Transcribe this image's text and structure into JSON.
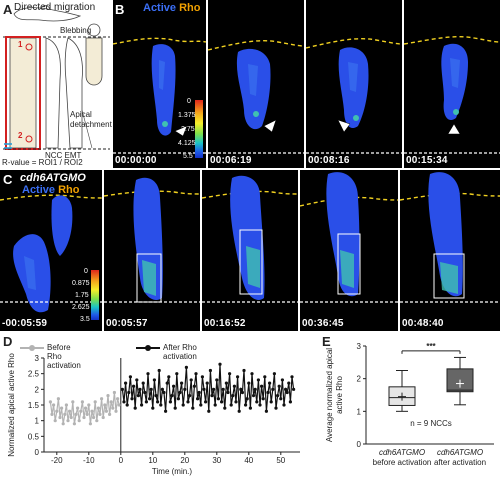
{
  "panelA": {
    "letter": "A",
    "label_directed": "Directed migration",
    "label_blebbing": "Blebbing",
    "label_apical": "Apical detachment",
    "label_ncc_emt": "NCC EMT",
    "label_r1": "1",
    "label_r2": "2",
    "label_rvalue": "R-value = ROI1 / ROI2"
  },
  "panelB": {
    "letter": "B",
    "title_active": "Active",
    "title_rho": "Rho",
    "colorbar_ticks": [
      "0",
      "1.375",
      "2.75",
      "4.125",
      "5.5"
    ],
    "timestamps": [
      "00:00:00",
      "00:06:19",
      "00:08:16",
      "00:15:34"
    ]
  },
  "panelC": {
    "letter": "C",
    "title_morph": "cdh6ATGMO",
    "title_active": "Active",
    "title_rho": "Rho",
    "colorbar_ticks": [
      "0",
      "0.875",
      "1.75",
      "2.625",
      "3.5"
    ],
    "timestamps": [
      "-00:05:59",
      "00:05:57",
      "00:16:52",
      "00:36:45",
      "00:48:40"
    ]
  },
  "panelD": {
    "letter": "D",
    "legend_before": "Before Rho activation",
    "legend_after": "After Rho activation",
    "colors": {
      "before": "#b3b3b3",
      "after": "#111111"
    }
  },
  "panelE": {
    "letter": "E",
    "n_label": "n = 9 NCCs",
    "significance": "***",
    "ylabel_line1": "Average normalized apical",
    "ylabel_line2": "active Rho",
    "cat1_line1": "cdh6ATGMO",
    "cat1_line2": "before activation",
    "cat2_line1": "cdh6ATGMO",
    "cat2_line2": "after activation"
  },
  "chart_data": [
    {
      "type": "line",
      "xlabel": "Time (min.)",
      "ylabel": "Normalized apical active Rho",
      "xlim": [
        -24,
        56
      ],
      "ylim": [
        0,
        3
      ],
      "xticks": [
        -20,
        -10,
        0,
        10,
        20,
        30,
        40,
        50
      ],
      "yticks": [
        0,
        0.5,
        1,
        1.5,
        2,
        2.5,
        3
      ],
      "series": [
        {
          "name": "Before Rho activation",
          "x": [
            -22,
            -21.5,
            -21,
            -20.5,
            -20,
            -19.5,
            -19,
            -18.5,
            -18,
            -17.5,
            -17,
            -16.5,
            -16,
            -15.5,
            -15,
            -14.5,
            -14,
            -13.5,
            -13,
            -12.5,
            -12,
            -11.5,
            -11,
            -10.5,
            -10,
            -9.5,
            -9,
            -8.5,
            -8,
            -7.5,
            -7,
            -6.5,
            -6,
            -5.5,
            -5,
            -4.5,
            -4,
            -3.5,
            -3,
            -2.5,
            -2,
            -1.5,
            -1,
            -0.5
          ],
          "y": [
            1.6,
            1.2,
            1.5,
            1.0,
            1.3,
            1.7,
            1.1,
            1.4,
            0.9,
            1.2,
            1.5,
            1.0,
            1.3,
            1.1,
            1.6,
            0.9,
            1.2,
            1.4,
            1.0,
            1.3,
            1.6,
            1.1,
            1.4,
            1.2,
            1.5,
            0.9,
            1.3,
            1.1,
            1.6,
            1.0,
            1.4,
            1.2,
            1.7,
            1.1,
            1.5,
            1.3,
            1.8,
            1.2,
            1.6,
            1.4,
            1.9,
            1.3,
            1.7,
            1.5
          ]
        },
        {
          "name": "After Rho activation",
          "x": [
            0.5,
            1,
            1.5,
            2,
            2.5,
            3,
            3.5,
            4,
            4.5,
            5,
            5.5,
            6,
            6.5,
            7,
            7.5,
            8,
            8.5,
            9,
            9.5,
            10,
            10.5,
            11,
            11.5,
            12,
            12.5,
            13,
            13.5,
            14,
            14.5,
            15,
            15.5,
            16,
            16.5,
            17,
            17.5,
            18,
            18.5,
            19,
            19.5,
            20,
            20.5,
            21,
            21.5,
            22,
            22.5,
            23,
            23.5,
            24,
            24.5,
            25,
            25.5,
            26,
            26.5,
            27,
            27.5,
            28,
            28.5,
            29,
            29.5,
            30,
            30.5,
            31,
            31.5,
            32,
            32.5,
            33,
            33.5,
            34,
            34.5,
            35,
            35.5,
            36,
            36.5,
            37,
            37.5,
            38,
            38.5,
            39,
            39.5,
            40,
            40.5,
            41,
            41.5,
            42,
            42.5,
            43,
            43.5,
            44,
            44.5,
            45,
            45.5,
            46,
            46.5,
            47,
            47.5,
            48,
            48.5,
            49,
            49.5,
            50,
            50.5,
            51,
            51.5,
            52,
            52.5,
            53,
            53.5,
            54
          ],
          "y": [
            2.0,
            1.6,
            2.2,
            1.5,
            1.9,
            2.4,
            1.7,
            2.1,
            1.4,
            2.3,
            1.8,
            2.0,
            1.5,
            2.2,
            1.9,
            1.6,
            2.5,
            1.7,
            2.0,
            1.4,
            2.3,
            1.8,
            1.6,
            2.6,
            1.5,
            2.0,
            1.9,
            1.3,
            2.2,
            2.4,
            1.6,
            1.8,
            2.1,
            1.4,
            2.5,
            1.7,
            1.9,
            2.2,
            1.5,
            2.0,
            2.7,
            1.6,
            1.8,
            2.3,
            1.4,
            2.1,
            2.5,
            1.7,
            1.9,
            1.5,
            2.4,
            2.0,
            1.6,
            2.2,
            1.3,
            2.6,
            1.8,
            2.0,
            1.5,
            2.3,
            1.7,
            2.8,
            1.6,
            2.0,
            1.4,
            2.2,
            1.9,
            2.5,
            1.5,
            1.8,
            2.1,
            1.6,
            2.4,
            1.3,
            2.0,
            1.9,
            2.6,
            1.5,
            1.7,
            2.2,
            1.4,
            2.5,
            1.8,
            2.0,
            1.6,
            2.3,
            1.5,
            2.1,
            1.7,
            2.4,
            1.3,
            1.9,
            2.2,
            1.6,
            2.0,
            2.5,
            1.4,
            1.8,
            2.1,
            1.7,
            2.3,
            1.5,
            2.0,
            1.9,
            2.2,
            1.6,
            2.4,
            2.0
          ]
        }
      ]
    },
    {
      "type": "box",
      "ylabel": "Average normalized apical active Rho",
      "ylim": [
        0,
        3
      ],
      "yticks": [
        0,
        1,
        2,
        3
      ],
      "categories": [
        "cdh6ATGMO before activation",
        "cdh6ATGMO after activation"
      ],
      "boxes": [
        {
          "min": 1.0,
          "q1": 1.18,
          "median": 1.42,
          "q3": 1.75,
          "max": 2.25,
          "mean": 1.45,
          "fill": "#e6e6e6"
        },
        {
          "min": 1.2,
          "q1": 1.6,
          "median": 1.65,
          "q3": 2.3,
          "max": 2.65,
          "mean": 1.85,
          "fill": "#666666"
        }
      ]
    }
  ]
}
